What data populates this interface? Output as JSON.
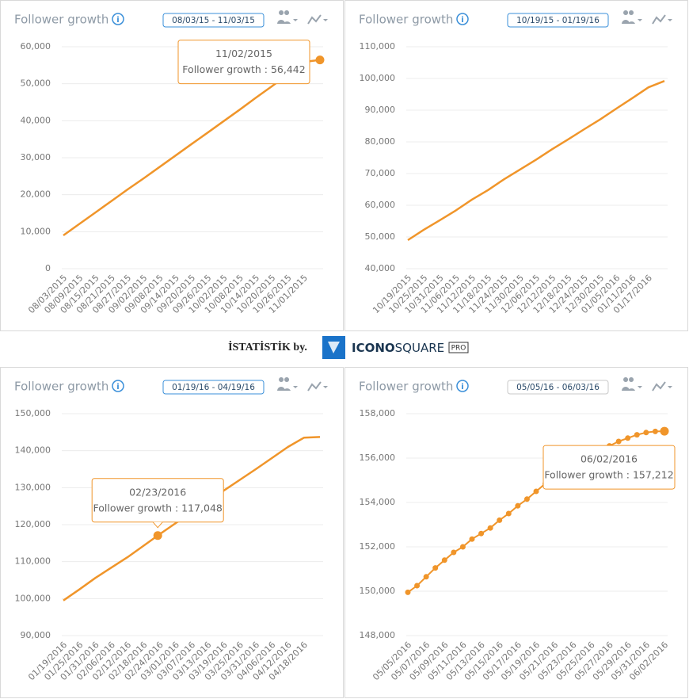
{
  "chart_data": [
    {
      "type": "line",
      "title": "Follower growth",
      "date_range": "08/03/15 - 11/03/15",
      "color": "#f0952a",
      "markers": false,
      "grid": true,
      "categories": [
        "08/03/2015",
        "08/09/2015",
        "08/15/2015",
        "08/21/2015",
        "08/27/2015",
        "09/02/2015",
        "09/08/2015",
        "09/14/2015",
        "09/20/2015",
        "09/26/2015",
        "10/02/2015",
        "10/08/2015",
        "10/14/2015",
        "10/20/2015",
        "10/26/2015",
        "11/01/2015",
        null
      ],
      "values": [
        9000,
        12100,
        15200,
        18300,
        21400,
        24400,
        27500,
        30600,
        33700,
        36800,
        39900,
        43000,
        46200,
        49300,
        52500,
        55900,
        56442
      ],
      "ylim": [
        0,
        60000
      ],
      "yticks": [
        0,
        {
          "value": 10000,
          "label": "10,000"
        },
        {
          "value": 20000,
          "label": "20,000"
        },
        {
          "value": 30000,
          "label": "30,000"
        },
        {
          "value": 40000,
          "label": "40,000"
        },
        {
          "value": 50000,
          "label": "50,000"
        },
        {
          "value": 60000,
          "label": "60,000"
        }
      ],
      "tooltip": {
        "title": "11/02/2015",
        "text": "Follower growth : 56,442",
        "value": 56442
      }
    },
    {
      "type": "line",
      "title": "Follower growth",
      "date_range": "10/19/15 - 01/19/16",
      "color": "#f0952a",
      "markers": false,
      "grid": true,
      "categories": [
        "10/19/2015",
        "10/25/2015",
        "10/31/2015",
        "11/06/2015",
        "11/12/2015",
        "11/18/2015",
        "11/24/2015",
        "11/30/2015",
        "12/06/2015",
        "12/12/2015",
        "12/18/2015",
        "12/24/2015",
        "12/30/2015",
        "01/05/2016",
        "01/11/2016",
        "01/17/2016",
        null
      ],
      "values": [
        49000,
        52300,
        55300,
        58400,
        61800,
        64800,
        68200,
        71300,
        74400,
        77700,
        80800,
        84000,
        87100,
        90500,
        93800,
        97200,
        99200
      ],
      "ylim": [
        40000,
        110000
      ],
      "yticks": [
        {
          "value": 40000,
          "label": "40,000"
        },
        {
          "value": 50000,
          "label": "50,000"
        },
        {
          "value": 60000,
          "label": "60,000"
        },
        {
          "value": 70000,
          "label": "70,000"
        },
        {
          "value": 80000,
          "label": "80,000"
        },
        {
          "value": 90000,
          "label": "90,000"
        },
        {
          "value": 100000,
          "label": "100,000"
        },
        {
          "value": 110000,
          "label": "110,000"
        }
      ]
    },
    {
      "type": "line",
      "title": "Follower growth",
      "date_range": "01/19/16 - 04/19/16",
      "color": "#f0952a",
      "markers": false,
      "grid": true,
      "categories": [
        "01/19/2016",
        "01/25/2016",
        "01/31/2016",
        "02/06/2016",
        "02/12/2016",
        "02/18/2016",
        "02/24/2016",
        "03/01/2016",
        "03/07/2016",
        "03/13/2016",
        "03/19/2016",
        "03/25/2016",
        "03/31/2016",
        "04/06/2016",
        "04/12/2016",
        "04/18/2016",
        null
      ],
      "values": [
        99500,
        102500,
        105600,
        108400,
        111200,
        114300,
        117400,
        120400,
        123300,
        126000,
        129200,
        132100,
        135000,
        138000,
        141000,
        143500,
        143700
      ],
      "ylim": [
        90000,
        150000
      ],
      "yticks": [
        {
          "value": 90000,
          "label": "90,000"
        },
        {
          "value": 100000,
          "label": "100,000"
        },
        {
          "value": 110000,
          "label": "110,000"
        },
        {
          "value": 120000,
          "label": "120,000"
        },
        {
          "value": 130000,
          "label": "130,000"
        },
        {
          "value": 140000,
          "label": "140,000"
        },
        {
          "value": 150000,
          "label": "150,000"
        }
      ],
      "tooltip": {
        "title": "02/23/2016",
        "text": "Follower growth : 117,048",
        "value": 117048
      }
    },
    {
      "type": "line",
      "title": "Follower growth",
      "date_range": "05/05/16 - 06/03/16",
      "color": "#f0952a",
      "markers": true,
      "grid": true,
      "categories": [
        "05/05/2016",
        null,
        "05/07/2016",
        null,
        "05/09/2016",
        null,
        "05/11/2016",
        null,
        "05/13/2016",
        null,
        "05/15/2016",
        null,
        "05/17/2016",
        null,
        "05/19/2016",
        null,
        "05/21/2016",
        null,
        "05/23/2016",
        null,
        "05/25/2016",
        null,
        "05/27/2016",
        null,
        "05/29/2016",
        null,
        "05/31/2016",
        null,
        "06/02/2016"
      ],
      "values": [
        149950,
        150250,
        150650,
        151050,
        151400,
        151750,
        152000,
        152350,
        152600,
        152850,
        153200,
        153500,
        153850,
        154150,
        154500,
        154850,
        155150,
        155450,
        155700,
        155950,
        156150,
        156350,
        156550,
        156750,
        156900,
        157050,
        157150,
        157200,
        157212
      ],
      "ylim": [
        148000,
        158000
      ],
      "yticks": [
        {
          "value": 148000,
          "label": "148,000"
        },
        {
          "value": 150000,
          "label": "150,000"
        },
        {
          "value": 152000,
          "label": "152,000"
        },
        {
          "value": 154000,
          "label": "154,000"
        },
        {
          "value": 156000,
          "label": "156,000"
        },
        {
          "value": 158000,
          "label": "158,000"
        }
      ],
      "tooltip": {
        "title": "06/02/2016",
        "text": "Follower growth : 157,212",
        "value": 157212
      }
    }
  ],
  "footer": {
    "credit": "İSTATİSTİK by.",
    "brand_bold": "ICONO",
    "brand_light": "SQUARE",
    "badge": "PRO"
  }
}
